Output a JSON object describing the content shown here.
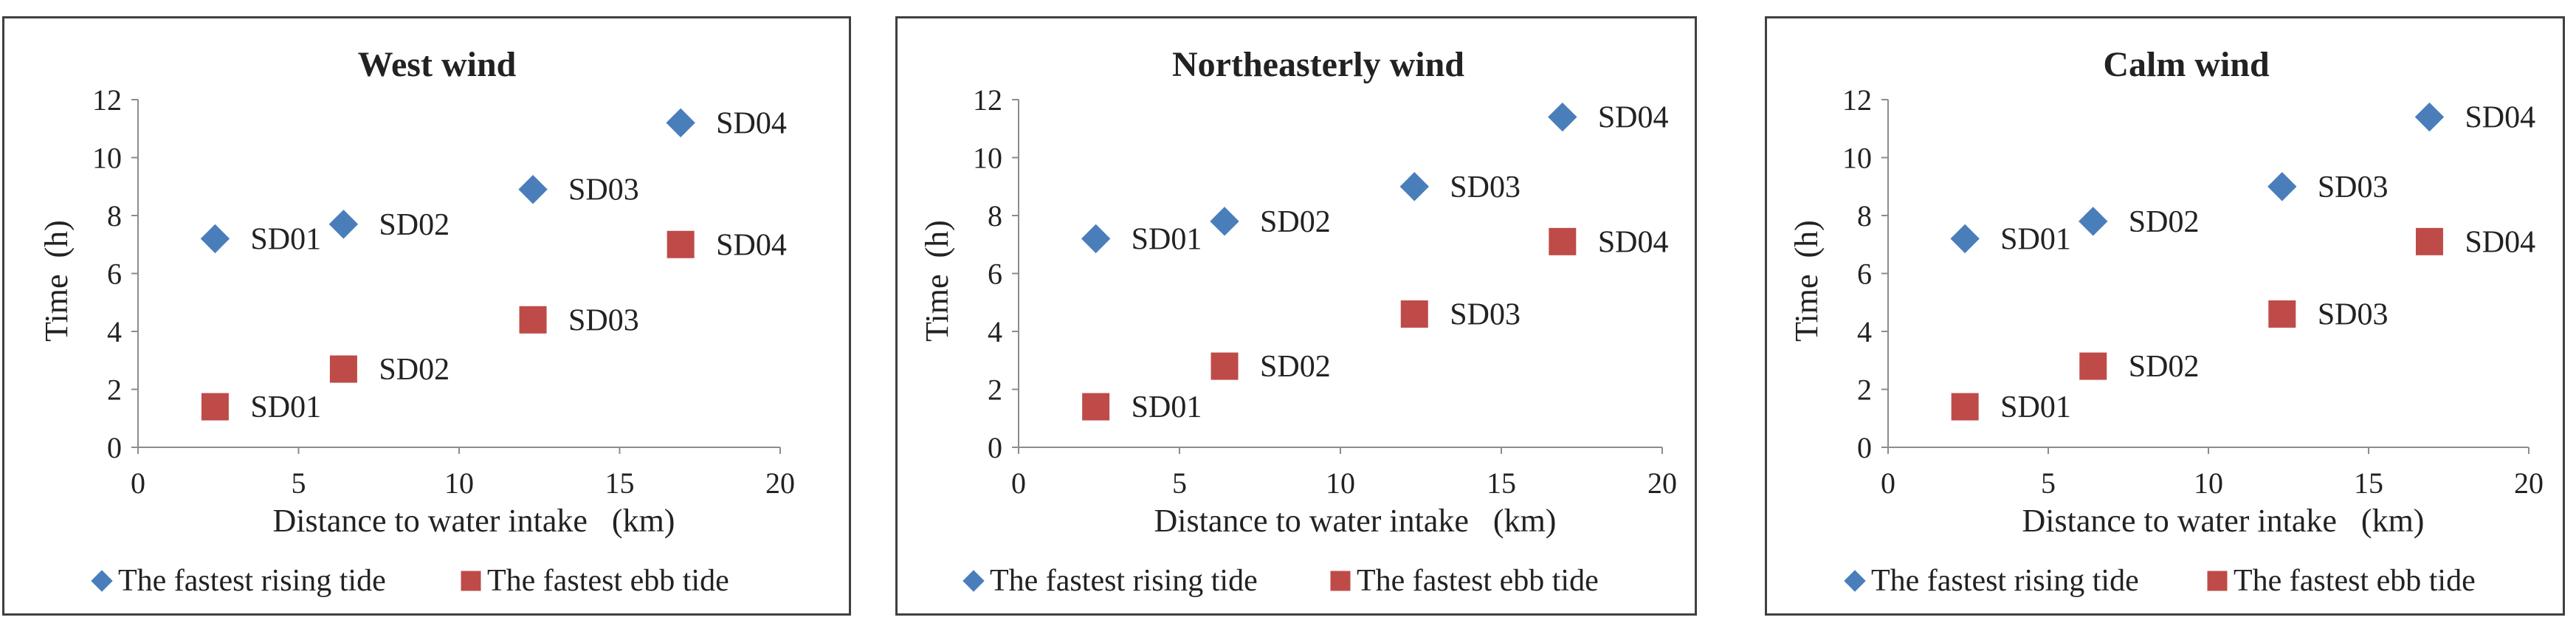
{
  "chart_data": [
    {
      "type": "scatter",
      "title": "West wind",
      "xlabel": "Distance to water intake   (km)",
      "ylabel": "Time  (h)",
      "xlim": [
        0,
        20
      ],
      "ylim": [
        0,
        12
      ],
      "xticks": [
        0,
        5,
        10,
        15,
        20
      ],
      "yticks": [
        0,
        2,
        4,
        6,
        8,
        10,
        12
      ],
      "legend_position": "bottom",
      "series": [
        {
          "name": "The fastest rising tide",
          "marker": "diamond",
          "color": "#4A7EBB",
          "points": [
            {
              "label": "SD01",
              "x": 2.4,
              "y": 7.2
            },
            {
              "label": "SD02",
              "x": 6.4,
              "y": 7.7
            },
            {
              "label": "SD03",
              "x": 12.3,
              "y": 8.9
            },
            {
              "label": "SD04",
              "x": 16.9,
              "y": 11.2
            }
          ]
        },
        {
          "name": "The fastest ebb tide",
          "marker": "square",
          "color": "#BE4B48",
          "points": [
            {
              "label": "SD01",
              "x": 2.4,
              "y": 1.4
            },
            {
              "label": "SD02",
              "x": 6.4,
              "y": 2.7
            },
            {
              "label": "SD03",
              "x": 12.3,
              "y": 4.4
            },
            {
              "label": "SD04",
              "x": 16.9,
              "y": 7.0
            }
          ]
        }
      ]
    },
    {
      "type": "scatter",
      "title": "Northeasterly wind",
      "xlabel": "Distance to water intake   (km)",
      "ylabel": "Time  (h)",
      "xlim": [
        0,
        20
      ],
      "ylim": [
        0,
        12
      ],
      "xticks": [
        0,
        5,
        10,
        15,
        20
      ],
      "yticks": [
        0,
        2,
        4,
        6,
        8,
        10,
        12
      ],
      "legend_position": "bottom",
      "series": [
        {
          "name": "The fastest rising tide",
          "marker": "diamond",
          "color": "#4A7EBB",
          "points": [
            {
              "label": "SD01",
              "x": 2.4,
              "y": 7.2
            },
            {
              "label": "SD02",
              "x": 6.4,
              "y": 7.8
            },
            {
              "label": "SD03",
              "x": 12.3,
              "y": 9.0
            },
            {
              "label": "SD04",
              "x": 16.9,
              "y": 11.4
            }
          ]
        },
        {
          "name": "The fastest ebb tide",
          "marker": "square",
          "color": "#BE4B48",
          "points": [
            {
              "label": "SD01",
              "x": 2.4,
              "y": 1.4
            },
            {
              "label": "SD02",
              "x": 6.4,
              "y": 2.8
            },
            {
              "label": "SD03",
              "x": 12.3,
              "y": 4.6
            },
            {
              "label": "SD04",
              "x": 16.9,
              "y": 7.1
            }
          ]
        }
      ]
    },
    {
      "type": "scatter",
      "title": "Calm wind",
      "xlabel": "Distance to water intake   (km)",
      "ylabel": "Time  (h)",
      "xlim": [
        0,
        20
      ],
      "ylim": [
        0,
        12
      ],
      "xticks": [
        0,
        5,
        10,
        15,
        20
      ],
      "yticks": [
        0,
        2,
        4,
        6,
        8,
        10,
        12
      ],
      "legend_position": "bottom",
      "series": [
        {
          "name": "The fastest rising tide",
          "marker": "diamond",
          "color": "#4A7EBB",
          "points": [
            {
              "label": "SD01",
              "x": 2.4,
              "y": 7.2
            },
            {
              "label": "SD02",
              "x": 6.4,
              "y": 7.8
            },
            {
              "label": "SD03",
              "x": 12.3,
              "y": 9.0
            },
            {
              "label": "SD04",
              "x": 16.9,
              "y": 11.4
            }
          ]
        },
        {
          "name": "The fastest ebb tide",
          "marker": "square",
          "color": "#BE4B48",
          "points": [
            {
              "label": "SD01",
              "x": 2.4,
              "y": 1.4
            },
            {
              "label": "SD02",
              "x": 6.4,
              "y": 2.8
            },
            {
              "label": "SD03",
              "x": 12.3,
              "y": 4.6
            },
            {
              "label": "SD04",
              "x": 16.9,
              "y": 7.1
            }
          ]
        }
      ]
    }
  ]
}
